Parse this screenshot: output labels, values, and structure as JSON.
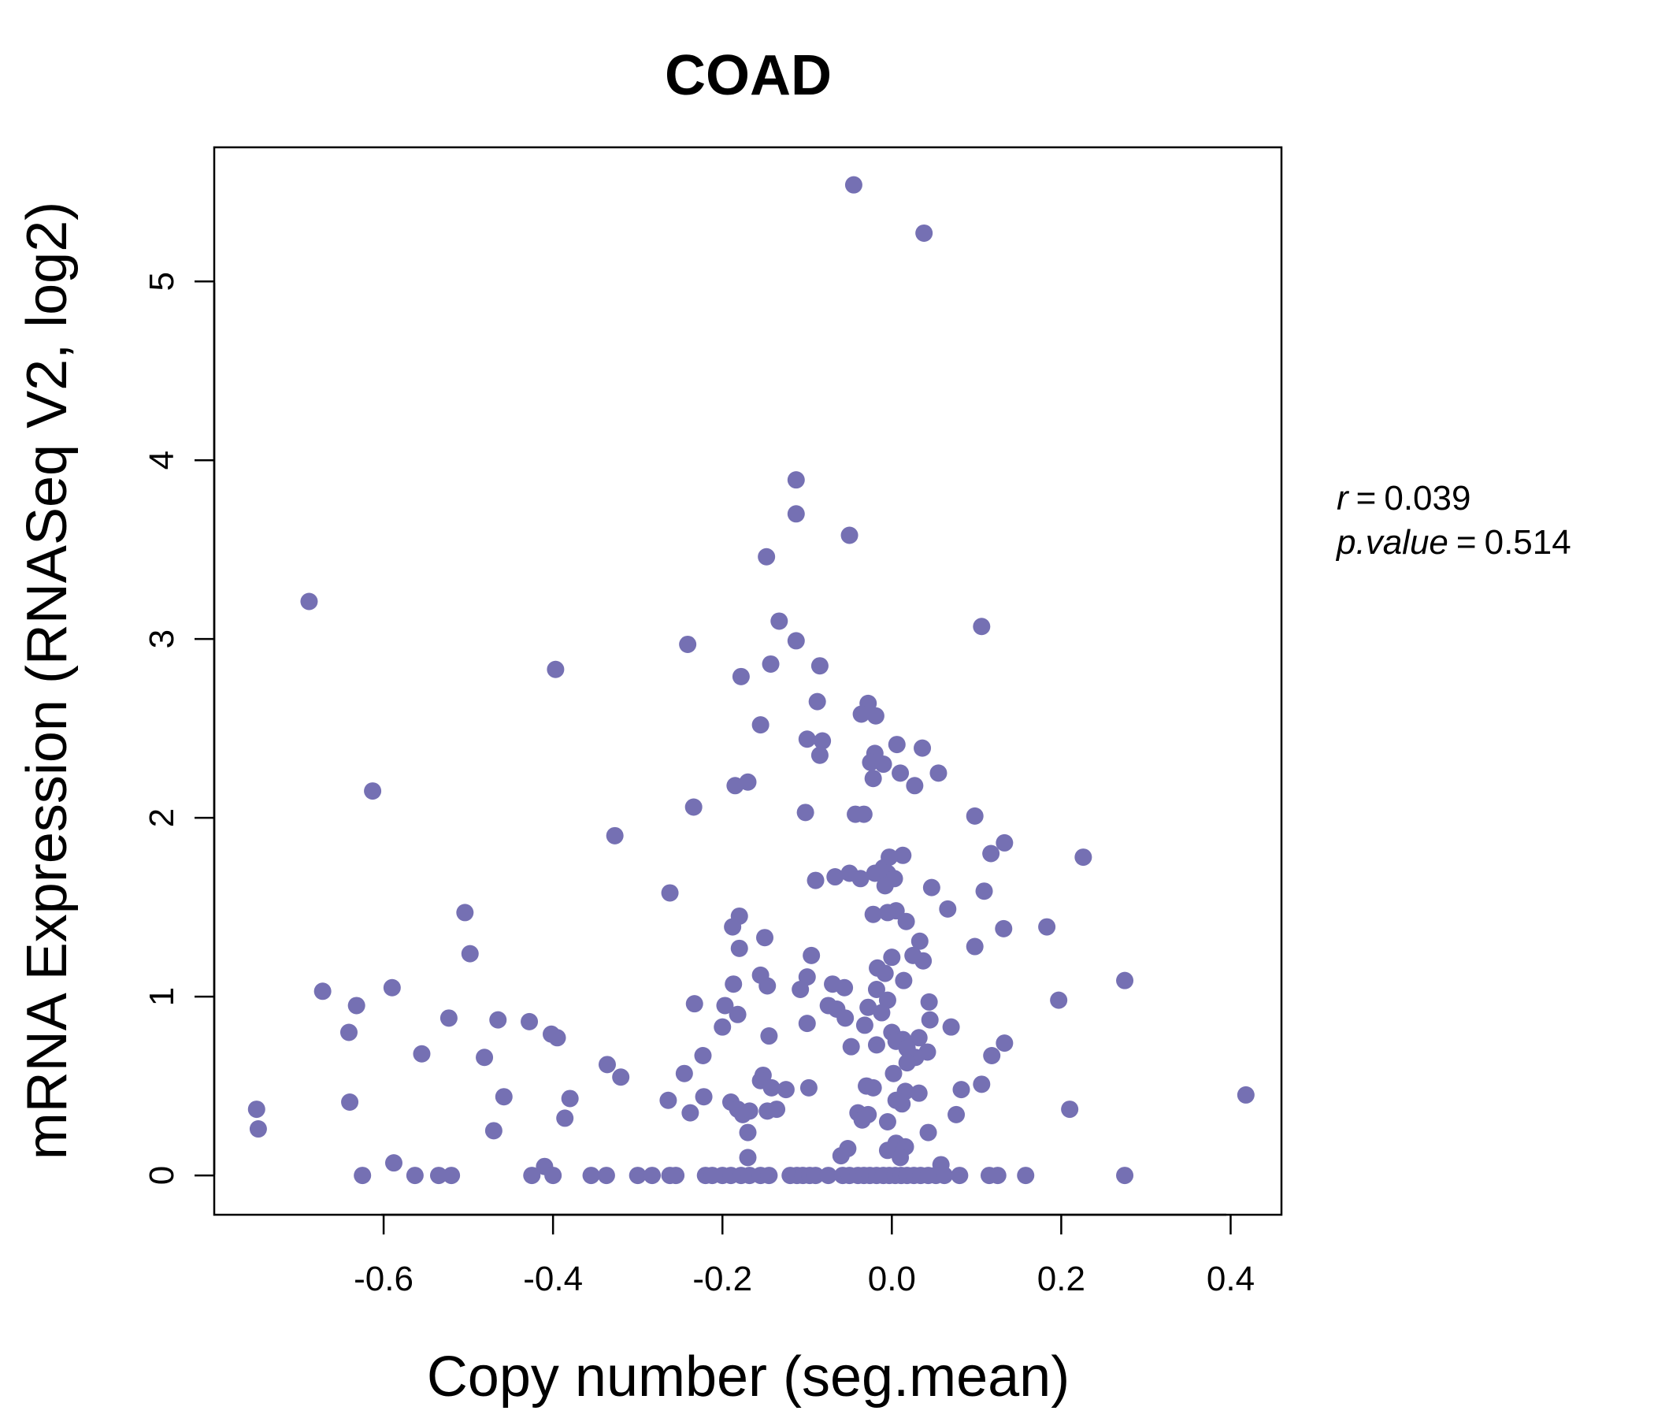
{
  "chart_data": {
    "type": "scatter",
    "title": "COAD",
    "xlabel": "Copy number (seg.mean)",
    "ylabel": "mRNA Expression (RNASeq V2, log2)",
    "xlim": [
      -0.8,
      0.46
    ],
    "ylim": [
      -0.22,
      5.75
    ],
    "x_ticks": [
      "-0.6",
      "-0.4",
      "-0.2",
      "0.0",
      "0.2",
      "0.4"
    ],
    "y_ticks": [
      "0",
      "1",
      "2",
      "3",
      "4",
      "5"
    ],
    "grid": false,
    "legend": "none",
    "stats": {
      "r_label": "r",
      "r_value": "0.039",
      "p_label": "p.value",
      "p_value": "0.514"
    },
    "colors": {
      "point": "#7570b3",
      "title": "#7570b3"
    },
    "points": [
      {
        "x": -0.045,
        "y": 5.54
      },
      {
        "x": 0.038,
        "y": 5.27
      },
      {
        "x": -0.113,
        "y": 3.89
      },
      {
        "x": -0.113,
        "y": 3.7
      },
      {
        "x": -0.05,
        "y": 3.58
      },
      {
        "x": -0.148,
        "y": 3.46
      },
      {
        "x": -0.688,
        "y": 3.21
      },
      {
        "x": -0.133,
        "y": 3.1
      },
      {
        "x": 0.106,
        "y": 3.07
      },
      {
        "x": -0.113,
        "y": 2.99
      },
      {
        "x": -0.241,
        "y": 2.97
      },
      {
        "x": -0.143,
        "y": 2.86
      },
      {
        "x": -0.085,
        "y": 2.85
      },
      {
        "x": -0.397,
        "y": 2.83
      },
      {
        "x": -0.178,
        "y": 2.79
      },
      {
        "x": -0.088,
        "y": 2.65
      },
      {
        "x": -0.028,
        "y": 2.64
      },
      {
        "x": -0.036,
        "y": 2.58
      },
      {
        "x": -0.019,
        "y": 2.57
      },
      {
        "x": -0.155,
        "y": 2.52
      },
      {
        "x": -0.1,
        "y": 2.44
      },
      {
        "x": -0.082,
        "y": 2.43
      },
      {
        "x": 0.006,
        "y": 2.41
      },
      {
        "x": 0.036,
        "y": 2.39
      },
      {
        "x": -0.085,
        "y": 2.35
      },
      {
        "x": -0.02,
        "y": 2.36
      },
      {
        "x": -0.025,
        "y": 2.31
      },
      {
        "x": -0.01,
        "y": 2.3
      },
      {
        "x": 0.01,
        "y": 2.25
      },
      {
        "x": 0.055,
        "y": 2.25
      },
      {
        "x": -0.022,
        "y": 2.22
      },
      {
        "x": -0.17,
        "y": 2.2
      },
      {
        "x": -0.185,
        "y": 2.18
      },
      {
        "x": 0.027,
        "y": 2.18
      },
      {
        "x": -0.613,
        "y": 2.15
      },
      {
        "x": -0.234,
        "y": 2.06
      },
      {
        "x": -0.102,
        "y": 2.03
      },
      {
        "x": -0.043,
        "y": 2.02
      },
      {
        "x": -0.033,
        "y": 2.02
      },
      {
        "x": 0.098,
        "y": 2.01
      },
      {
        "x": -0.327,
        "y": 1.9
      },
      {
        "x": 0.133,
        "y": 1.86
      },
      {
        "x": 0.013,
        "y": 1.79
      },
      {
        "x": 0.117,
        "y": 1.8
      },
      {
        "x": 0.226,
        "y": 1.78
      },
      {
        "x": -0.003,
        "y": 1.78
      },
      {
        "x": -0.01,
        "y": 1.72
      },
      {
        "x": -0.05,
        "y": 1.69
      },
      {
        "x": -0.02,
        "y": 1.69
      },
      {
        "x": -0.005,
        "y": 1.69
      },
      {
        "x": -0.067,
        "y": 1.67
      },
      {
        "x": -0.037,
        "y": 1.66
      },
      {
        "x": -0.09,
        "y": 1.65
      },
      {
        "x": 0.003,
        "y": 1.66
      },
      {
        "x": -0.008,
        "y": 1.62
      },
      {
        "x": 0.047,
        "y": 1.61
      },
      {
        "x": 0.109,
        "y": 1.59
      },
      {
        "x": -0.262,
        "y": 1.58
      },
      {
        "x": 0.066,
        "y": 1.49
      },
      {
        "x": 0.005,
        "y": 1.48
      },
      {
        "x": -0.005,
        "y": 1.47
      },
      {
        "x": -0.504,
        "y": 1.47
      },
      {
        "x": -0.022,
        "y": 1.46
      },
      {
        "x": -0.18,
        "y": 1.45
      },
      {
        "x": 0.017,
        "y": 1.42
      },
      {
        "x": -0.188,
        "y": 1.39
      },
      {
        "x": 0.183,
        "y": 1.39
      },
      {
        "x": 0.132,
        "y": 1.38
      },
      {
        "x": -0.15,
        "y": 1.33
      },
      {
        "x": 0.033,
        "y": 1.31
      },
      {
        "x": 0.098,
        "y": 1.28
      },
      {
        "x": -0.18,
        "y": 1.27
      },
      {
        "x": -0.498,
        "y": 1.24
      },
      {
        "x": -0.095,
        "y": 1.23
      },
      {
        "x": 0.0,
        "y": 1.22
      },
      {
        "x": 0.025,
        "y": 1.23
      },
      {
        "x": 0.037,
        "y": 1.2
      },
      {
        "x": -0.017,
        "y": 1.16
      },
      {
        "x": -0.008,
        "y": 1.13
      },
      {
        "x": -0.155,
        "y": 1.12
      },
      {
        "x": 0.014,
        "y": 1.09
      },
      {
        "x": -0.1,
        "y": 1.11
      },
      {
        "x": 0.275,
        "y": 1.09
      },
      {
        "x": -0.187,
        "y": 1.07
      },
      {
        "x": -0.07,
        "y": 1.07
      },
      {
        "x": -0.147,
        "y": 1.06
      },
      {
        "x": -0.056,
        "y": 1.05
      },
      {
        "x": -0.59,
        "y": 1.05
      },
      {
        "x": -0.018,
        "y": 1.04
      },
      {
        "x": -0.108,
        "y": 1.04
      },
      {
        "x": -0.672,
        "y": 1.03
      },
      {
        "x": 0.197,
        "y": 0.98
      },
      {
        "x": -0.005,
        "y": 0.98
      },
      {
        "x": 0.044,
        "y": 0.97
      },
      {
        "x": -0.233,
        "y": 0.96
      },
      {
        "x": -0.632,
        "y": 0.95
      },
      {
        "x": -0.075,
        "y": 0.95
      },
      {
        "x": -0.197,
        "y": 0.95
      },
      {
        "x": -0.028,
        "y": 0.94
      },
      {
        "x": -0.065,
        "y": 0.93
      },
      {
        "x": -0.012,
        "y": 0.91
      },
      {
        "x": -0.182,
        "y": 0.9
      },
      {
        "x": -0.055,
        "y": 0.88
      },
      {
        "x": 0.045,
        "y": 0.87
      },
      {
        "x": -0.523,
        "y": 0.88
      },
      {
        "x": -0.465,
        "y": 0.87
      },
      {
        "x": -0.428,
        "y": 0.86
      },
      {
        "x": -0.1,
        "y": 0.85
      },
      {
        "x": -0.032,
        "y": 0.84
      },
      {
        "x": 0.07,
        "y": 0.83
      },
      {
        "x": -0.2,
        "y": 0.83
      },
      {
        "x": 0.0,
        "y": 0.8
      },
      {
        "x": -0.641,
        "y": 0.8
      },
      {
        "x": -0.402,
        "y": 0.79
      },
      {
        "x": -0.395,
        "y": 0.77
      },
      {
        "x": -0.145,
        "y": 0.78
      },
      {
        "x": 0.013,
        "y": 0.76
      },
      {
        "x": 0.005,
        "y": 0.75
      },
      {
        "x": 0.032,
        "y": 0.77
      },
      {
        "x": 0.133,
        "y": 0.74
      },
      {
        "x": -0.018,
        "y": 0.73
      },
      {
        "x": 0.018,
        "y": 0.71
      },
      {
        "x": -0.048,
        "y": 0.72
      },
      {
        "x": 0.042,
        "y": 0.69
      },
      {
        "x": -0.555,
        "y": 0.68
      },
      {
        "x": -0.223,
        "y": 0.67
      },
      {
        "x": 0.118,
        "y": 0.67
      },
      {
        "x": 0.028,
        "y": 0.66
      },
      {
        "x": -0.481,
        "y": 0.66
      },
      {
        "x": 0.018,
        "y": 0.63
      },
      {
        "x": -0.336,
        "y": 0.62
      },
      {
        "x": -0.245,
        "y": 0.57
      },
      {
        "x": 0.002,
        "y": 0.57
      },
      {
        "x": -0.152,
        "y": 0.56
      },
      {
        "x": -0.32,
        "y": 0.55
      },
      {
        "x": -0.155,
        "y": 0.53
      },
      {
        "x": 0.106,
        "y": 0.51
      },
      {
        "x": -0.03,
        "y": 0.5
      },
      {
        "x": -0.022,
        "y": 0.49
      },
      {
        "x": -0.098,
        "y": 0.49
      },
      {
        "x": -0.142,
        "y": 0.49
      },
      {
        "x": -0.125,
        "y": 0.48
      },
      {
        "x": 0.082,
        "y": 0.48
      },
      {
        "x": 0.016,
        "y": 0.47
      },
      {
        "x": 0.032,
        "y": 0.46
      },
      {
        "x": 0.418,
        "y": 0.45
      },
      {
        "x": -0.222,
        "y": 0.44
      },
      {
        "x": -0.458,
        "y": 0.44
      },
      {
        "x": -0.38,
        "y": 0.43
      },
      {
        "x": 0.005,
        "y": 0.42
      },
      {
        "x": -0.264,
        "y": 0.42
      },
      {
        "x": -0.19,
        "y": 0.41
      },
      {
        "x": 0.012,
        "y": 0.4
      },
      {
        "x": -0.64,
        "y": 0.41
      },
      {
        "x": -0.182,
        "y": 0.37
      },
      {
        "x": 0.21,
        "y": 0.37
      },
      {
        "x": -0.75,
        "y": 0.37
      },
      {
        "x": -0.136,
        "y": 0.37
      },
      {
        "x": -0.147,
        "y": 0.36
      },
      {
        "x": -0.168,
        "y": 0.36
      },
      {
        "x": -0.238,
        "y": 0.35
      },
      {
        "x": -0.04,
        "y": 0.35
      },
      {
        "x": -0.028,
        "y": 0.34
      },
      {
        "x": -0.176,
        "y": 0.34
      },
      {
        "x": 0.076,
        "y": 0.34
      },
      {
        "x": -0.386,
        "y": 0.32
      },
      {
        "x": -0.035,
        "y": 0.31
      },
      {
        "x": -0.005,
        "y": 0.3
      },
      {
        "x": -0.748,
        "y": 0.26
      },
      {
        "x": -0.47,
        "y": 0.25
      },
      {
        "x": 0.043,
        "y": 0.24
      },
      {
        "x": -0.17,
        "y": 0.24
      },
      {
        "x": 0.005,
        "y": 0.18
      },
      {
        "x": 0.016,
        "y": 0.16
      },
      {
        "x": -0.052,
        "y": 0.15
      },
      {
        "x": -0.005,
        "y": 0.14
      },
      {
        "x": -0.06,
        "y": 0.11
      },
      {
        "x": 0.01,
        "y": 0.1
      },
      {
        "x": -0.17,
        "y": 0.1
      },
      {
        "x": 0.058,
        "y": 0.06
      },
      {
        "x": -0.588,
        "y": 0.07
      },
      {
        "x": -0.41,
        "y": 0.05
      },
      {
        "x": -0.625,
        "y": 0
      },
      {
        "x": -0.563,
        "y": 0
      },
      {
        "x": -0.535,
        "y": 0
      },
      {
        "x": -0.52,
        "y": 0
      },
      {
        "x": -0.425,
        "y": 0
      },
      {
        "x": -0.4,
        "y": 0
      },
      {
        "x": -0.355,
        "y": 0
      },
      {
        "x": -0.337,
        "y": 0
      },
      {
        "x": -0.3,
        "y": 0
      },
      {
        "x": -0.283,
        "y": 0
      },
      {
        "x": -0.262,
        "y": 0
      },
      {
        "x": -0.255,
        "y": 0
      },
      {
        "x": -0.22,
        "y": 0
      },
      {
        "x": -0.212,
        "y": 0
      },
      {
        "x": -0.2,
        "y": 0
      },
      {
        "x": -0.19,
        "y": 0
      },
      {
        "x": -0.178,
        "y": 0
      },
      {
        "x": -0.168,
        "y": 0
      },
      {
        "x": -0.155,
        "y": 0
      },
      {
        "x": -0.145,
        "y": 0
      },
      {
        "x": -0.12,
        "y": 0
      },
      {
        "x": -0.112,
        "y": 0
      },
      {
        "x": -0.105,
        "y": 0
      },
      {
        "x": -0.097,
        "y": 0
      },
      {
        "x": -0.09,
        "y": 0
      },
      {
        "x": -0.075,
        "y": 0
      },
      {
        "x": -0.058,
        "y": 0
      },
      {
        "x": -0.05,
        "y": 0
      },
      {
        "x": -0.04,
        "y": 0
      },
      {
        "x": -0.033,
        "y": 0
      },
      {
        "x": -0.026,
        "y": 0
      },
      {
        "x": -0.018,
        "y": 0
      },
      {
        "x": -0.01,
        "y": 0
      },
      {
        "x": -0.003,
        "y": 0
      },
      {
        "x": 0.004,
        "y": 0
      },
      {
        "x": 0.011,
        "y": 0
      },
      {
        "x": 0.018,
        "y": 0
      },
      {
        "x": 0.026,
        "y": 0
      },
      {
        "x": 0.034,
        "y": 0
      },
      {
        "x": 0.043,
        "y": 0
      },
      {
        "x": 0.052,
        "y": 0
      },
      {
        "x": 0.062,
        "y": 0
      },
      {
        "x": 0.08,
        "y": 0
      },
      {
        "x": 0.115,
        "y": 0
      },
      {
        "x": 0.125,
        "y": 0
      },
      {
        "x": 0.158,
        "y": 0
      },
      {
        "x": 0.275,
        "y": 0
      }
    ]
  }
}
